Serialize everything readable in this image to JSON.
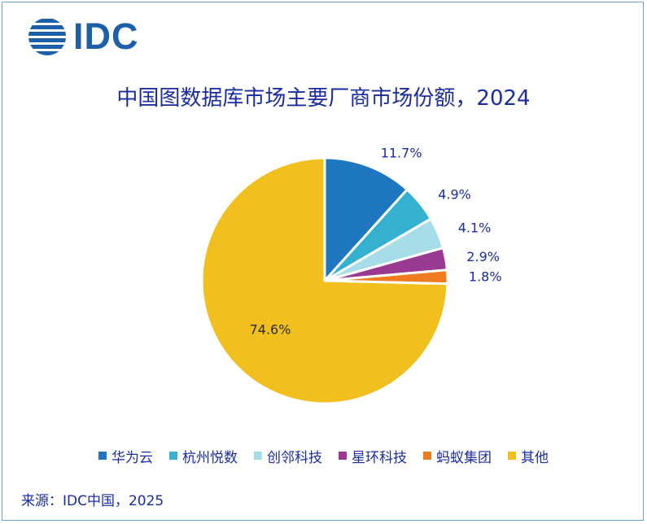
{
  "logo": {
    "text": "IDC",
    "icon": "idc-globe-stripes-icon",
    "color": "#1d5fa8"
  },
  "source": "来源：IDC中国，2025",
  "chart_data": {
    "type": "pie",
    "title": "中国图数据库市场主要厂商市场份额，2024",
    "slices": [
      {
        "name": "华为云",
        "value": 11.7,
        "label": "11.7%",
        "color": "#1f77c0"
      },
      {
        "name": "杭州悦数",
        "value": 4.9,
        "label": "4.9%",
        "color": "#35b0cf"
      },
      {
        "name": "创邻科技",
        "value": 4.1,
        "label": "4.1%",
        "color": "#a6dde9"
      },
      {
        "name": "星环科技",
        "value": 2.9,
        "label": "2.9%",
        "color": "#9b3a92"
      },
      {
        "name": "蚂蚁集团",
        "value": 1.8,
        "label": "1.8%",
        "color": "#f07c22"
      },
      {
        "name": "其他",
        "value": 74.6,
        "label": "74.6%",
        "color": "#f2c01e"
      }
    ],
    "legend_position": "bottom"
  }
}
